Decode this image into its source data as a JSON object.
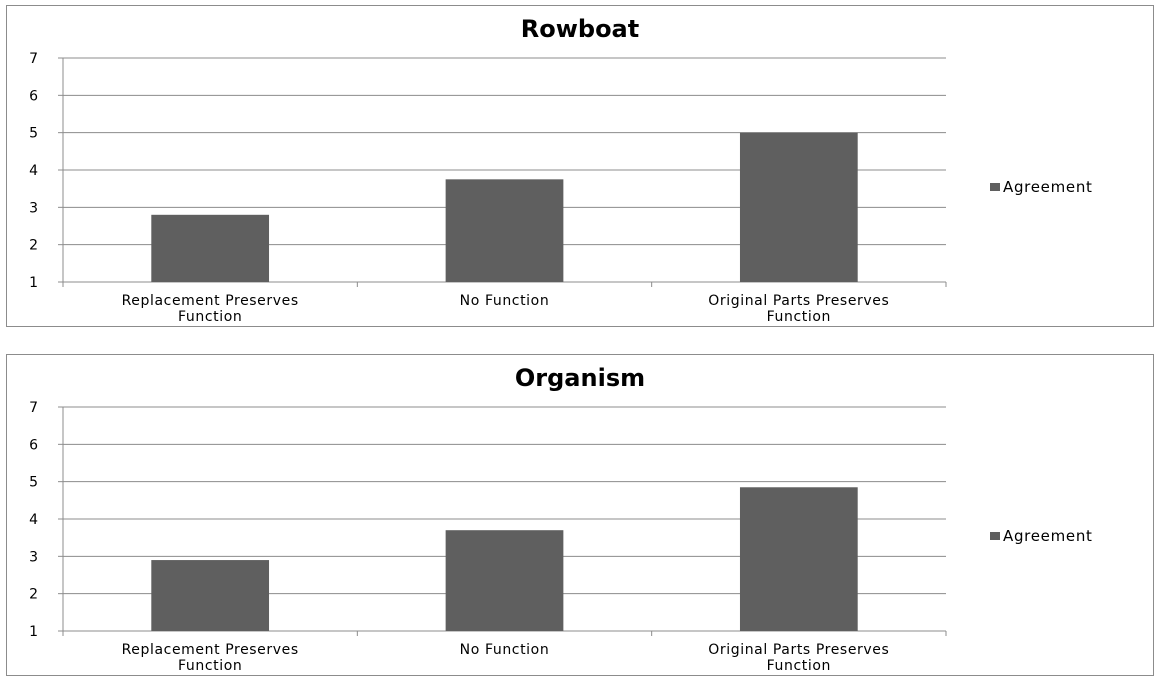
{
  "chart_data": [
    {
      "type": "bar",
      "title": "Rowboat",
      "categories": [
        "Replacement Preserves Function",
        "No Function",
        "Original Parts Preserves Function"
      ],
      "category_lines": [
        [
          "Replacement Preserves",
          "Function"
        ],
        [
          "No Function"
        ],
        [
          "Original Parts Preserves",
          "Function"
        ]
      ],
      "series": [
        {
          "name": "Agreement",
          "values": [
            2.8,
            3.75,
            5.0
          ],
          "color": "#5f5f5f"
        }
      ],
      "xlabel": "",
      "ylabel": "",
      "ylim": [
        1,
        7
      ],
      "yticks": [
        1,
        2,
        3,
        4,
        5,
        6,
        7
      ],
      "grid": true,
      "legend_position": "right"
    },
    {
      "type": "bar",
      "title": "Organism",
      "categories": [
        "Replacement Preserves Function",
        "No Function",
        "Original Parts Preserves Function"
      ],
      "category_lines": [
        [
          "Replacement Preserves",
          "Function"
        ],
        [
          "No Function"
        ],
        [
          "Original Parts Preserves",
          "Function"
        ]
      ],
      "series": [
        {
          "name": "Agreement",
          "values": [
            2.9,
            3.7,
            4.85
          ],
          "color": "#5f5f5f"
        }
      ],
      "xlabel": "",
      "ylabel": "",
      "ylim": [
        1,
        7
      ],
      "yticks": [
        1,
        2,
        3,
        4,
        5,
        6,
        7
      ],
      "grid": true,
      "legend_position": "right"
    }
  ],
  "colors": {
    "bar": "#5f5f5f",
    "gridline": "#8c8c8c",
    "axis": "#8c8c8c",
    "border": "#8c8c8c"
  }
}
